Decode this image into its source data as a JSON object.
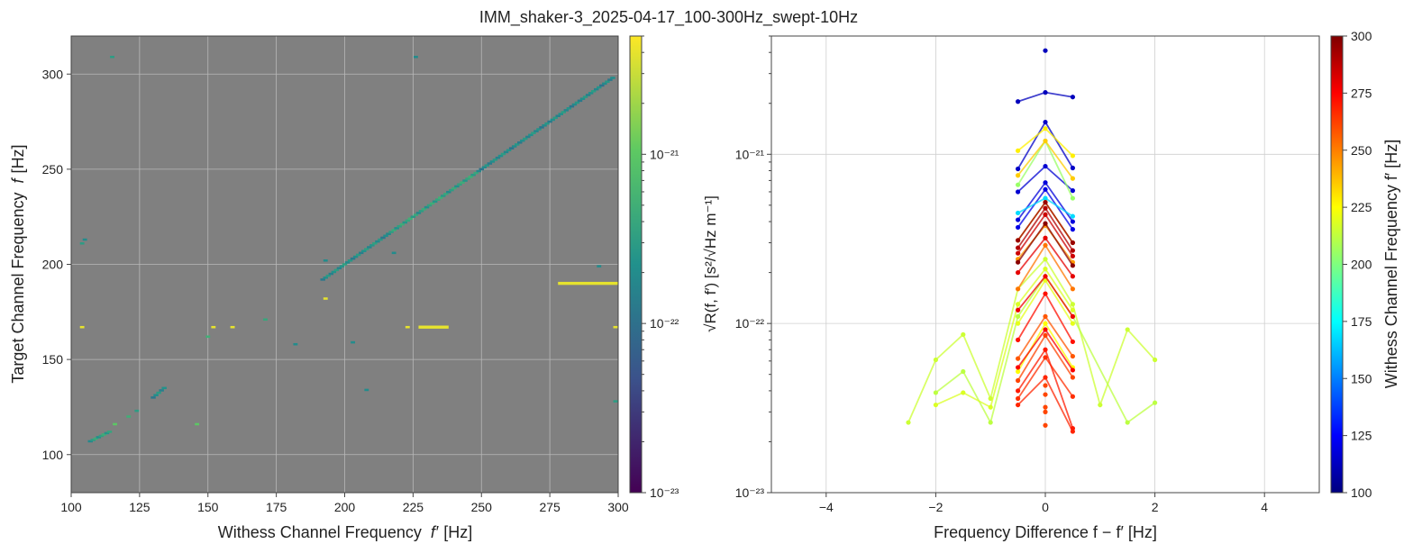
{
  "figure": {
    "title": "IMM_shaker-3_2025-04-17_100-300Hz_swept-10Hz"
  },
  "colors": {
    "background_gray": "#808080",
    "grid": "#b8b8b8",
    "left_colormap": [
      "#440154",
      "#3b528b",
      "#21918c",
      "#5ec962",
      "#fde725"
    ],
    "right_colormap": [
      "#00007f",
      "#0000ff",
      "#007fff",
      "#00ffff",
      "#7fff7f",
      "#ffff00",
      "#ff7f00",
      "#ff0000",
      "#7f0000"
    ]
  },
  "chart_data": [
    {
      "type": "heatmap",
      "xlabel_text": "Withess Channel Frequency",
      "xlabel_sym": "f′",
      "xlabel_unit": "[Hz]",
      "ylabel_text": "Target Channel Frequency",
      "ylabel_sym": "f",
      "ylabel_unit": "[Hz]",
      "xlim": [
        100,
        300
      ],
      "ylim": [
        80,
        320
      ],
      "xticks": [
        "100",
        "125",
        "150",
        "175",
        "200",
        "225",
        "250",
        "275",
        "300"
      ],
      "yticks": [
        "100",
        "150",
        "200",
        "250",
        "300"
      ],
      "grid": true,
      "colorbar": {
        "scale": "log",
        "range": [
          1e-23,
          5e-21
        ],
        "ticks": [
          "10⁻²³",
          "10⁻²²",
          "10⁻²¹"
        ],
        "label": "√R(f, f′)  [s²/√Hz m⁻¹]"
      },
      "diagonal_segments": [
        {
          "x": [
            107,
            114
          ],
          "y": [
            107,
            112
          ],
          "value": 3e-22
        },
        {
          "x": [
            130,
            134
          ],
          "y": [
            130,
            135
          ],
          "value": 2e-22
        },
        {
          "x": [
            192,
            216
          ],
          "y": [
            192,
            216
          ],
          "value": 2e-22
        },
        {
          "x": [
            216,
            250
          ],
          "y": [
            216,
            250
          ],
          "value": 3e-22
        },
        {
          "x": [
            250,
            298
          ],
          "y": [
            250,
            298
          ],
          "value": 1.8e-22
        }
      ],
      "points": [
        {
          "x": 115,
          "y": 309,
          "value": 3e-22
        },
        {
          "x": 226,
          "y": 309,
          "value": 2e-22
        },
        {
          "x": 105,
          "y": 213,
          "value": 2e-22
        },
        {
          "x": 104,
          "y": 211,
          "value": 3e-22
        },
        {
          "x": 193,
          "y": 202,
          "value": 2e-22
        },
        {
          "x": 218,
          "y": 206,
          "value": 2e-22
        },
        {
          "x": 293,
          "y": 199,
          "value": 2e-22
        },
        {
          "x": 193,
          "y": 182,
          "value": 4e-21
        },
        {
          "x": 104,
          "y": 167,
          "value": 4e-21
        },
        {
          "x": 152,
          "y": 167,
          "value": 4e-21
        },
        {
          "x": 159,
          "y": 167,
          "value": 4e-21
        },
        {
          "x": 171,
          "y": 171,
          "value": 4e-22
        },
        {
          "x": 150,
          "y": 162,
          "value": 5e-22
        },
        {
          "x": 182,
          "y": 158,
          "value": 2e-22
        },
        {
          "x": 203,
          "y": 159,
          "value": 2e-22
        },
        {
          "x": 208,
          "y": 134,
          "value": 2e-22
        },
        {
          "x": 124,
          "y": 123,
          "value": 3e-22
        },
        {
          "x": 121,
          "y": 120,
          "value": 5e-22
        },
        {
          "x": 116,
          "y": 116,
          "value": 1e-21
        },
        {
          "x": 146,
          "y": 116,
          "value": 1e-21
        },
        {
          "x": 223,
          "y": 167,
          "value": 4e-21
        },
        {
          "x": 299,
          "y": 167,
          "value": 4e-21
        },
        {
          "x": 299,
          "y": 128,
          "value": 3e-22
        }
      ],
      "horizontal_segments": [
        {
          "x": [
            227,
            238
          ],
          "y": 167,
          "value": 4e-21
        },
        {
          "x": [
            278,
            300
          ],
          "y": 190,
          "value": 4e-21
        }
      ]
    },
    {
      "type": "line",
      "xlabel": "Frequency Difference f − f′ [Hz]",
      "ylabel": "",
      "xlim": [
        -5,
        5
      ],
      "ylim": [
        1e-23,
        5e-21
      ],
      "yscale": "log",
      "xticks": [
        "−4",
        "−2",
        "0",
        "2",
        "4"
      ],
      "yticks": [
        "10⁻²³",
        "10⁻²²",
        "10⁻²¹"
      ],
      "grid": true,
      "colorbar": {
        "range": [
          100,
          300
        ],
        "ticks": [
          "100",
          "125",
          "150",
          "175",
          "200",
          "225",
          "250",
          "275",
          "300"
        ],
        "label": "Withess Channel Frequency  f′ [Hz]"
      },
      "series": [
        {
          "f": 112,
          "x": [
            -0.5,
            0,
            0.5
          ],
          "y": [
            2.05e-21,
            2.32e-21,
            2.18e-21
          ]
        },
        {
          "f": 112,
          "x": [
            0
          ],
          "y": [
            4.1e-21
          ]
        },
        {
          "f": 114,
          "x": [
            -0.5,
            0,
            0.5
          ],
          "y": [
            8.2e-22,
            1.55e-21,
            8.3e-22
          ]
        },
        {
          "f": 116,
          "x": [
            -0.5,
            0,
            0.5
          ],
          "y": [
            6e-22,
            8.5e-22,
            6.1e-22
          ]
        },
        {
          "f": 118,
          "x": [
            -0.5,
            0,
            0.5
          ],
          "y": [
            4.1e-22,
            6.8e-22,
            4e-22
          ]
        },
        {
          "f": 120,
          "x": [
            -0.5,
            0,
            0.5
          ],
          "y": [
            3.7e-22,
            6.2e-22,
            3.6e-22
          ]
        },
        {
          "f": 168,
          "x": [
            -0.5,
            0,
            0.5
          ],
          "y": [
            4.5e-22,
            5.5e-22,
            4.3e-22
          ]
        },
        {
          "f": 205,
          "x": [
            -0.5,
            0,
            0.5
          ],
          "y": [
            6.6e-22,
            1.2e-21,
            5.5e-22
          ]
        },
        {
          "f": 215,
          "x": [
            -2.5,
            -2,
            -1.5,
            -1,
            -0.5,
            0,
            0.5,
            1,
            1.5,
            2
          ],
          "y": [
            2.6e-23,
            6.1e-23,
            8.6e-23,
            3.6e-23,
            1.6e-22,
            2.4e-22,
            1.3e-22,
            3.3e-23,
            9.2e-23,
            6.1e-23
          ]
        },
        {
          "f": 212,
          "x": [
            -2,
            -1.5,
            -1,
            -0.5,
            0,
            0.5,
            1.5,
            2
          ],
          "y": [
            3.9e-23,
            5.2e-23,
            2.6e-23,
            1.1e-22,
            1.9e-22,
            1.1e-22,
            2.6e-23,
            3.4e-23
          ]
        },
        {
          "f": 218,
          "x": [
            -2,
            -1.5,
            -1,
            -0.5,
            0,
            0.5
          ],
          "y": [
            3.3e-23,
            3.9e-23,
            3.2e-23,
            1.3e-22,
            2.1e-22,
            1.2e-22
          ]
        },
        {
          "f": 220,
          "x": [
            -0.5,
            0,
            0.5
          ],
          "y": [
            1e-22,
            1.8e-22,
            1e-22
          ]
        },
        {
          "f": 225,
          "x": [
            -0.5,
            0,
            0.5
          ],
          "y": [
            5.2e-23,
            1e-22,
            5.5e-23
          ]
        },
        {
          "f": 228,
          "x": [
            -0.5,
            0,
            0.5
          ],
          "y": [
            1.05e-21,
            1.42e-21,
            9.8e-22
          ]
        },
        {
          "f": 235,
          "x": [
            -0.5,
            0,
            0.5
          ],
          "y": [
            7.5e-22,
            1.2e-21,
            7.2e-22
          ]
        },
        {
          "f": 240,
          "x": [
            -0.5,
            0,
            0.5
          ],
          "y": [
            3.1e-22,
            5.2e-22,
            3e-22
          ]
        },
        {
          "f": 245,
          "x": [
            -0.5,
            0,
            0.5
          ],
          "y": [
            2.4e-22,
            3.8e-22,
            2.3e-22
          ]
        },
        {
          "f": 252,
          "x": [
            -0.5,
            0,
            0.5
          ],
          "y": [
            1.6e-22,
            2.9e-22,
            1.6e-22
          ]
        },
        {
          "f": 258,
          "x": [
            -0.5,
            0,
            0.5
          ],
          "y": [
            6.2e-23,
            1.1e-22,
            6.4e-23
          ]
        },
        {
          "f": 262,
          "x": [
            -0.5,
            0,
            0.5
          ],
          "y": [
            4.6e-23,
            8.5e-23,
            4.8e-23
          ]
        },
        {
          "f": 266,
          "x": [
            -0.5,
            0,
            0.5
          ],
          "y": [
            3.6e-23,
            6.3e-23,
            3.7e-23
          ]
        },
        {
          "f": 268,
          "x": [
            -0.5,
            0,
            0.5
          ],
          "y": [
            3.3e-23,
            4.8e-23,
            2.3e-23
          ]
        },
        {
          "f": 270,
          "x": [
            -0.5,
            0,
            0.5
          ],
          "y": [
            4e-23,
            7e-23,
            2.4e-23
          ]
        },
        {
          "f": 272,
          "x": [
            -0.5,
            0,
            0.5
          ],
          "y": [
            8e-23,
            1.5e-22,
            7.8e-23
          ]
        },
        {
          "f": 276,
          "x": [
            -0.5,
            0,
            0.5
          ],
          "y": [
            5.5e-23,
            9.2e-23,
            5.3e-23
          ]
        },
        {
          "f": 278,
          "x": [
            -0.5,
            0,
            0.5
          ],
          "y": [
            1.2e-22,
            1.9e-22,
            1.1e-22
          ]
        },
        {
          "f": 280,
          "x": [
            -0.5,
            0,
            0.5
          ],
          "y": [
            2e-22,
            3.2e-22,
            1.9e-22
          ]
        },
        {
          "f": 285,
          "x": [
            -0.5,
            0,
            0.5
          ],
          "y": [
            2.6e-22,
            4.4e-22,
            2.5e-22
          ]
        },
        {
          "f": 290,
          "x": [
            -0.5,
            0,
            0.5
          ],
          "y": [
            2.8e-22,
            4.8e-22,
            2.7e-22
          ]
        },
        {
          "f": 295,
          "x": [
            -0.5,
            0,
            0.5
          ],
          "y": [
            3.1e-22,
            5.2e-22,
            3e-22
          ]
        },
        {
          "f": 298,
          "x": [
            -0.5,
            0,
            0.5
          ],
          "y": [
            2.3e-22,
            3.9e-22,
            2.2e-22
          ]
        },
        {
          "f": 0,
          "x": [
            0
          ],
          "y": [
            2.5e-23
          ]
        },
        {
          "f": 0,
          "x": [
            0
          ],
          "y": [
            3e-23
          ]
        },
        {
          "f": 0,
          "x": [
            0
          ],
          "y": [
            3.2e-23
          ]
        },
        {
          "f": 0,
          "x": [
            0
          ],
          "y": [
            3.8e-23
          ]
        },
        {
          "f": 0,
          "x": [
            0
          ],
          "y": [
            4.3e-23
          ]
        }
      ]
    }
  ]
}
